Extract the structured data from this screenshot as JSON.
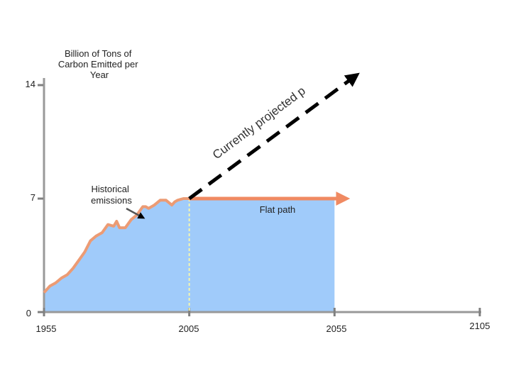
{
  "chart_data": {
    "type": "area",
    "ylabel": [
      "Billion of Tons of",
      "Carbon Emitted per",
      "Year"
    ],
    "x_ticks": [
      "1955",
      "2005",
      "2055",
      "2105"
    ],
    "y_ticks": [
      "0",
      "7",
      "14"
    ],
    "xlim": [
      1955,
      2105
    ],
    "ylim": [
      0,
      14
    ],
    "series": [
      {
        "name": "Historical emissions",
        "x": [
          1955,
          1957,
          1959,
          1961,
          1963,
          1965,
          1967,
          1969,
          1971,
          1973,
          1975,
          1977,
          1979,
          1980,
          1981,
          1982,
          1983,
          1985,
          1987,
          1989,
          1990,
          1991,
          1993,
          1995,
          1997,
          1999,
          2000,
          2001,
          2003,
          2005
        ],
        "y": [
          1.2,
          1.6,
          1.8,
          2.1,
          2.3,
          2.7,
          3.2,
          3.7,
          4.4,
          4.7,
          4.9,
          5.4,
          5.3,
          5.6,
          5.2,
          5.2,
          5.2,
          5.7,
          6.0,
          6.5,
          6.5,
          6.4,
          6.6,
          6.9,
          6.9,
          6.6,
          6.8,
          6.9,
          7.0,
          7.0
        ]
      },
      {
        "name": "Flat path",
        "x": [
          2005,
          2055
        ],
        "y": [
          7,
          7
        ]
      },
      {
        "name": "Currently projected path",
        "x": [
          2005,
          2060
        ],
        "y": [
          7,
          14.5
        ]
      }
    ],
    "annotations": {
      "historical": [
        "Historical",
        "emissions"
      ],
      "flat": "Flat path",
      "projected": "Currently projected path"
    },
    "colors": {
      "fill": "#a0cbfa",
      "historical_line": "#ec9b74",
      "flat_line": "#f08a62",
      "projected_line": "#000000",
      "divider": "#f2f5b0",
      "axis": "#999999",
      "tick": "#808080"
    }
  }
}
